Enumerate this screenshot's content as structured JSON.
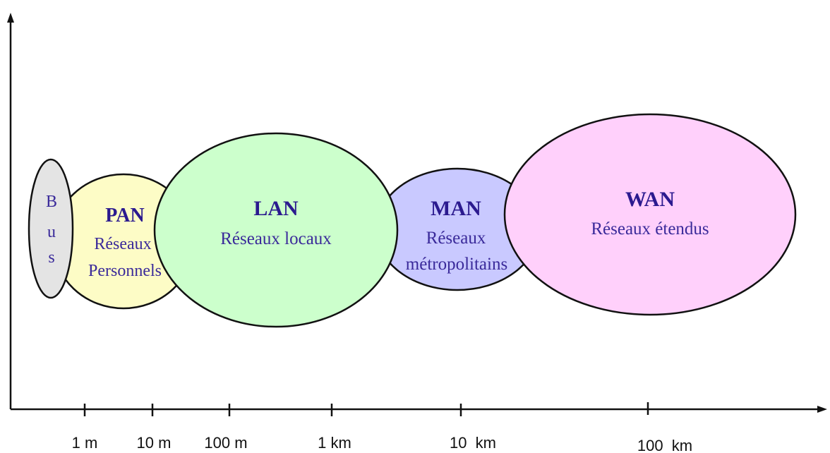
{
  "colors": {
    "axis": "#111111",
    "outline": "#111111",
    "bus": "#e4e4e4",
    "pan": "#fdfcc6",
    "lan": "#ccffcc",
    "man": "#c9c9ff",
    "wan": "#ffd0fb",
    "text": "#2b1a8f"
  },
  "networks": {
    "bus": {
      "letters": [
        "B",
        "u",
        "s"
      ]
    },
    "pan": {
      "title": "PAN",
      "line1": "Réseaux",
      "line2": "Personnels"
    },
    "lan": {
      "title": "LAN",
      "line1": "Réseaux locaux"
    },
    "man": {
      "title": "MAN",
      "line1": "Réseaux",
      "line2": "métropolitains"
    },
    "wan": {
      "title": "WAN",
      "line1": "Réseaux étendus"
    }
  },
  "axis": {
    "ticks": [
      "1 m",
      "10 m",
      "100 m",
      "1 km",
      "10  km",
      "100  km"
    ]
  }
}
